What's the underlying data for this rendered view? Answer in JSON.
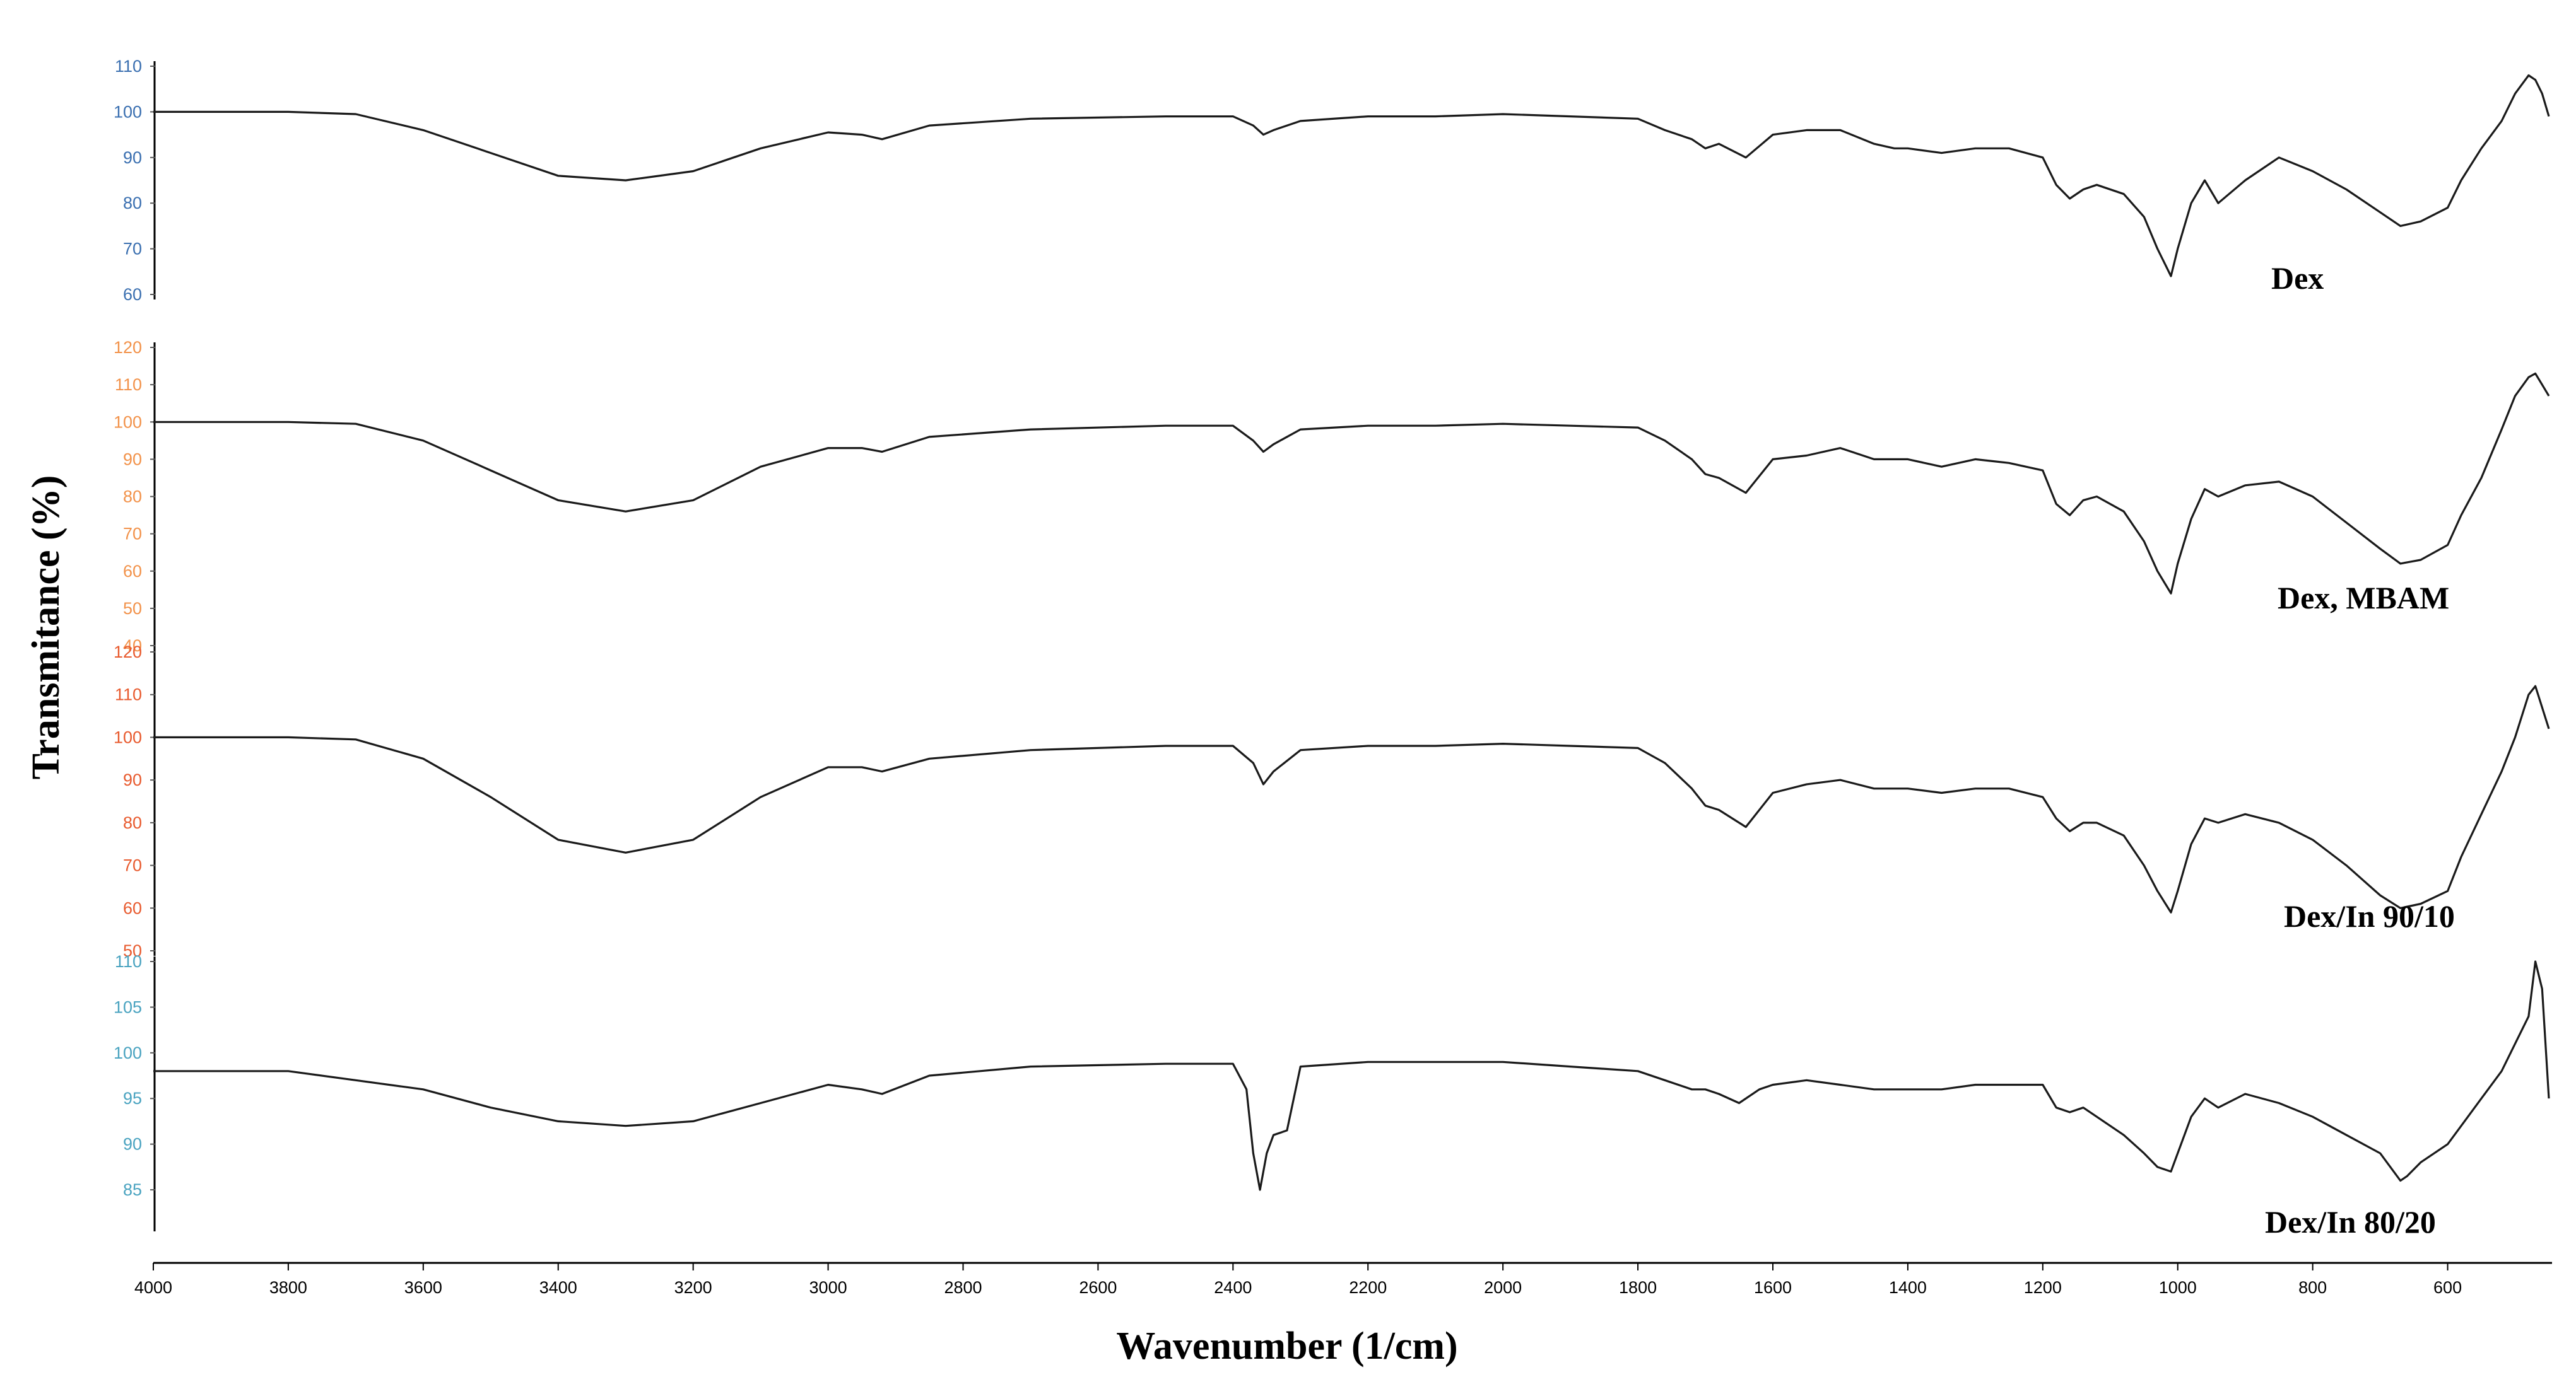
{
  "chart_data": {
    "type": "line",
    "xlabel": "Wavenumber (1/cm)",
    "ylabel": "Transmitance (%)",
    "xlim": [
      4000,
      450
    ],
    "x_ticks": [
      "4000",
      "3800",
      "3600",
      "3400",
      "3200",
      "3000",
      "2800",
      "2600",
      "2400",
      "2200",
      "2000",
      "1800",
      "1600",
      "1400",
      "1200",
      "1000",
      "800",
      "600"
    ],
    "grid": false,
    "panels": [
      {
        "name": "Dex",
        "tick_color": "#3a6fb0",
        "y_ticks": [
          "110",
          "100",
          "90",
          "80",
          "70",
          "60"
        ],
        "ylim": [
          60,
          110
        ],
        "x": [
          4000,
          3800,
          3700,
          3600,
          3500,
          3400,
          3300,
          3200,
          3100,
          3000,
          2950,
          2920,
          2850,
          2700,
          2500,
          2400,
          2370,
          2355,
          2340,
          2300,
          2200,
          2100,
          2000,
          1900,
          1800,
          1760,
          1720,
          1700,
          1680,
          1640,
          1600,
          1550,
          1500,
          1450,
          1420,
          1400,
          1350,
          1300,
          1250,
          1200,
          1180,
          1160,
          1140,
          1120,
          1080,
          1050,
          1030,
          1010,
          1000,
          980,
          960,
          940,
          900,
          850,
          800,
          750,
          700,
          670,
          640,
          600,
          580,
          550,
          520,
          500,
          480,
          470,
          460,
          450
        ],
        "values": [
          100,
          100,
          99.5,
          96,
          91,
          86,
          85,
          87,
          92,
          95.5,
          95,
          94,
          97,
          98.5,
          99,
          99,
          97,
          95,
          96,
          98,
          99,
          99,
          99.5,
          99,
          98.5,
          96,
          94,
          92,
          93,
          90,
          95,
          96,
          96,
          93,
          92,
          92,
          91,
          92,
          92,
          90,
          84,
          81,
          83,
          84,
          82,
          77,
          70,
          64,
          70,
          80,
          85,
          80,
          85,
          90,
          87,
          83,
          78,
          75,
          76,
          79,
          85,
          92,
          98,
          104,
          108,
          107,
          104,
          99
        ]
      },
      {
        "name": "Dex, MBAM",
        "tick_color": "#f2924a",
        "y_ticks": [
          "120",
          "110",
          "100",
          "90",
          "80",
          "70",
          "60",
          "50",
          "40"
        ],
        "ylim": [
          40,
          120
        ],
        "x": [
          4000,
          3800,
          3700,
          3600,
          3500,
          3400,
          3300,
          3200,
          3100,
          3000,
          2950,
          2920,
          2850,
          2700,
          2500,
          2400,
          2370,
          2355,
          2340,
          2300,
          2200,
          2100,
          2000,
          1900,
          1800,
          1760,
          1720,
          1700,
          1680,
          1640,
          1600,
          1550,
          1500,
          1450,
          1420,
          1400,
          1350,
          1300,
          1250,
          1200,
          1180,
          1160,
          1140,
          1120,
          1080,
          1050,
          1030,
          1010,
          1000,
          980,
          960,
          940,
          900,
          850,
          800,
          750,
          700,
          670,
          640,
          600,
          580,
          550,
          520,
          500,
          480,
          470,
          460,
          450
        ],
        "values": [
          100,
          100,
          99.5,
          95,
          87,
          79,
          76,
          79,
          88,
          93,
          93,
          92,
          96,
          98,
          99,
          99,
          95,
          92,
          94,
          98,
          99,
          99,
          99.5,
          99,
          98.5,
          95,
          90,
          86,
          85,
          81,
          90,
          91,
          93,
          90,
          90,
          90,
          88,
          90,
          89,
          87,
          78,
          75,
          79,
          80,
          76,
          68,
          60,
          54,
          62,
          74,
          82,
          80,
          83,
          84,
          80,
          73,
          66,
          62,
          63,
          67,
          75,
          85,
          98,
          107,
          112,
          113,
          110,
          107
        ]
      },
      {
        "name": "Dex/In 90/10",
        "tick_color": "#e85a2e",
        "y_ticks": [
          "120",
          "110",
          "100",
          "90",
          "80",
          "70",
          "60",
          "50"
        ],
        "ylim": [
          50,
          120
        ],
        "x": [
          4000,
          3800,
          3700,
          3600,
          3500,
          3400,
          3300,
          3200,
          3100,
          3000,
          2950,
          2920,
          2850,
          2700,
          2500,
          2400,
          2370,
          2355,
          2340,
          2300,
          2200,
          2100,
          2000,
          1900,
          1800,
          1760,
          1720,
          1700,
          1680,
          1640,
          1600,
          1550,
          1500,
          1450,
          1420,
          1400,
          1350,
          1300,
          1250,
          1200,
          1180,
          1160,
          1140,
          1120,
          1080,
          1050,
          1030,
          1010,
          1000,
          980,
          960,
          940,
          900,
          850,
          800,
          750,
          700,
          670,
          640,
          600,
          580,
          550,
          520,
          500,
          480,
          470,
          460,
          450
        ],
        "values": [
          100,
          100,
          99.5,
          95,
          86,
          76,
          73,
          76,
          86,
          93,
          93,
          92,
          95,
          97,
          98,
          98,
          94,
          89,
          92,
          97,
          98,
          98,
          98.5,
          98,
          97.5,
          94,
          88,
          84,
          83,
          79,
          87,
          89,
          90,
          88,
          88,
          88,
          87,
          88,
          88,
          86,
          81,
          78,
          80,
          80,
          77,
          70,
          64,
          59,
          64,
          75,
          81,
          80,
          82,
          80,
          76,
          70,
          63,
          60,
          61,
          64,
          72,
          82,
          92,
          100,
          110,
          112,
          107,
          102
        ]
      },
      {
        "name": "Dex/In 80/20",
        "tick_color": "#4aa3c0",
        "y_ticks": [
          "110",
          "105",
          "100",
          "95",
          "90",
          "85"
        ],
        "ylim": [
          81,
          110
        ],
        "x": [
          4000,
          3800,
          3700,
          3600,
          3500,
          3400,
          3300,
          3200,
          3100,
          3000,
          2950,
          2920,
          2850,
          2700,
          2500,
          2400,
          2380,
          2370,
          2360,
          2350,
          2340,
          2320,
          2300,
          2200,
          2100,
          2000,
          1900,
          1800,
          1760,
          1720,
          1700,
          1680,
          1650,
          1620,
          1600,
          1550,
          1500,
          1450,
          1420,
          1400,
          1350,
          1300,
          1250,
          1200,
          1180,
          1160,
          1140,
          1120,
          1080,
          1050,
          1030,
          1010,
          1000,
          980,
          960,
          940,
          900,
          850,
          800,
          750,
          700,
          670,
          660,
          640,
          600,
          580,
          550,
          520,
          500,
          480,
          470,
          460,
          450
        ],
        "values": [
          98,
          98,
          97,
          96,
          94,
          92.5,
          92,
          92.5,
          94.5,
          96.5,
          96,
          95.5,
          97.5,
          98.5,
          98.8,
          98.8,
          96,
          89,
          85,
          89,
          91,
          91.5,
          98.5,
          99,
          99,
          99,
          98.5,
          98,
          97,
          96,
          96,
          95.5,
          94.5,
          96,
          96.5,
          97,
          96.5,
          96,
          96,
          96,
          96,
          96.5,
          96.5,
          96.5,
          94,
          93.5,
          94,
          93,
          91,
          89,
          87.5,
          87,
          89,
          93,
          95,
          94,
          95.5,
          94.5,
          93,
          91,
          89,
          86,
          86.5,
          88,
          90,
          92,
          95,
          98,
          101,
          104,
          110,
          107,
          95
        ]
      }
    ]
  }
}
